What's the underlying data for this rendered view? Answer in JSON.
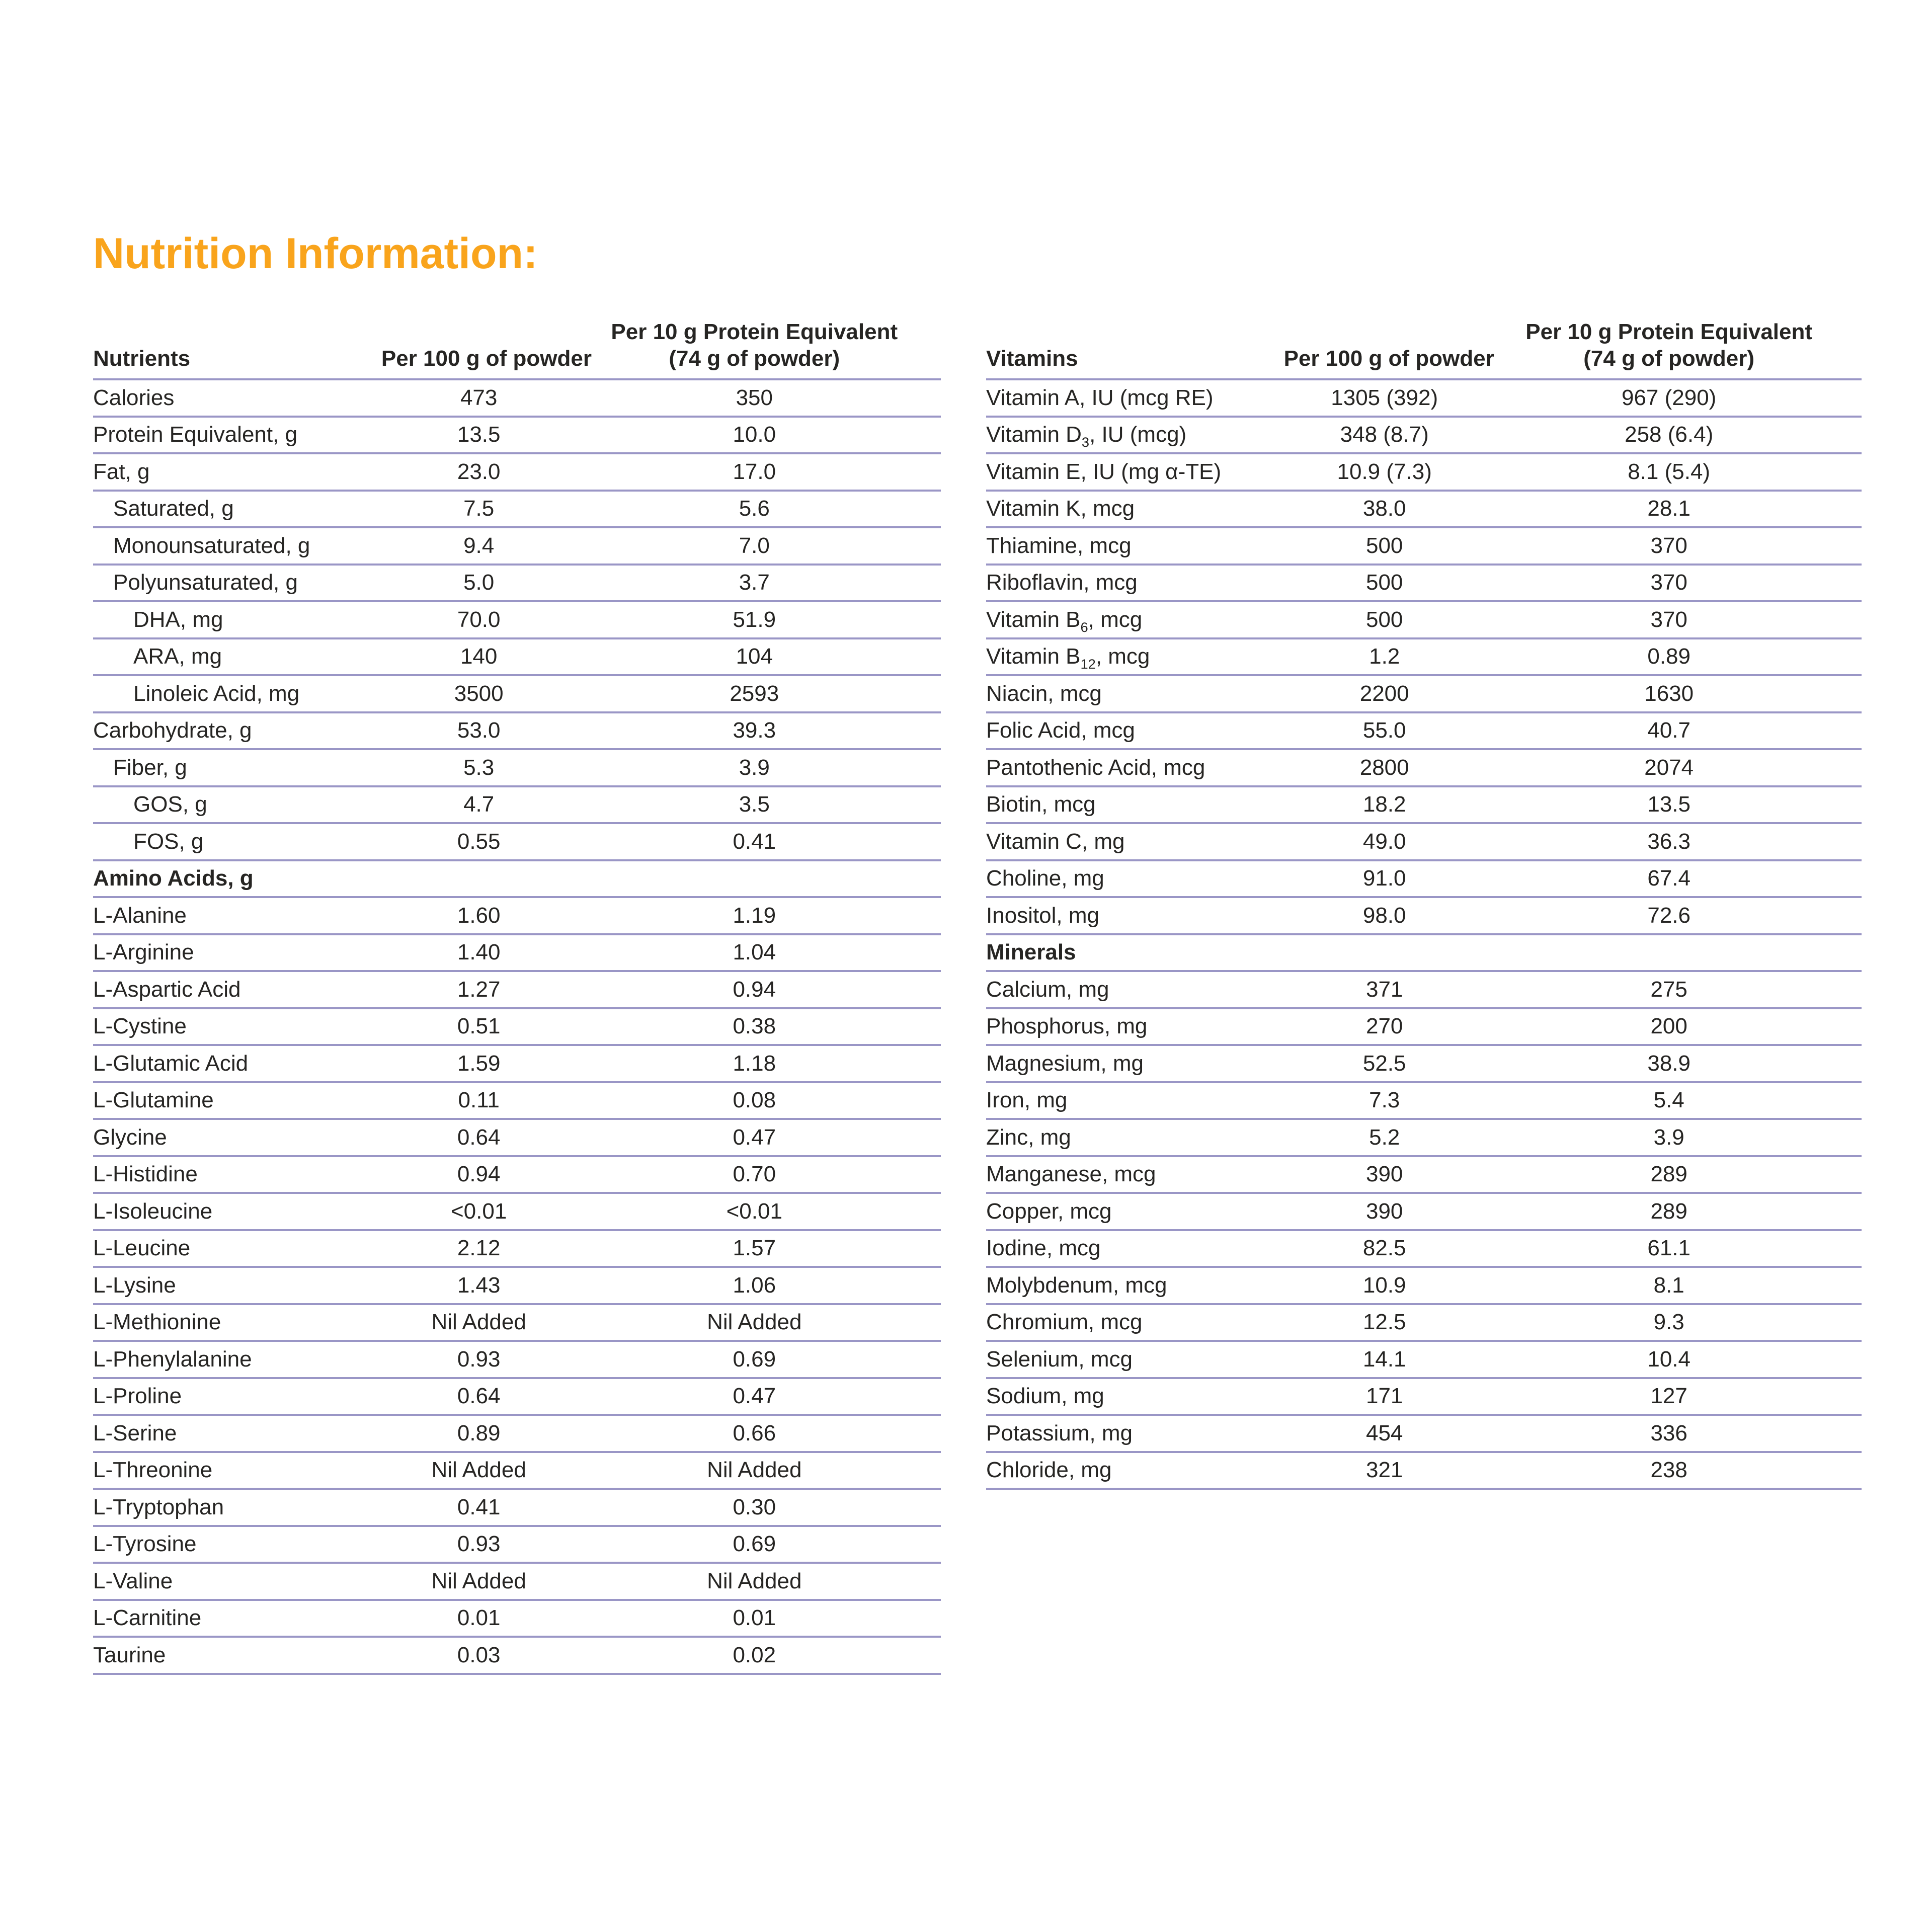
{
  "title": "Nutrition Information:",
  "colors": {
    "accent": "#F9A41C",
    "rule": "#9A96C6",
    "text": "#262523"
  },
  "tables": {
    "left": {
      "col1_header": "Nutrients",
      "col2_header": "Per 100 g of powder",
      "col3_header_line1": "Per 10 g Protein Equivalent",
      "col3_header_line2": "(74 g of powder)",
      "rows": [
        {
          "label": [
            "Calories"
          ],
          "indent": 0,
          "v1": "473",
          "v2": "350"
        },
        {
          "label": [
            "Protein Equivalent, g"
          ],
          "indent": 0,
          "v1": "13.5",
          "v2": "10.0"
        },
        {
          "label": [
            "Fat, g"
          ],
          "indent": 0,
          "v1": "23.0",
          "v2": "17.0"
        },
        {
          "label": [
            "Saturated, g"
          ],
          "indent": 1,
          "v1": "7.5",
          "v2": "5.6"
        },
        {
          "label": [
            "Monounsaturated, g"
          ],
          "indent": 1,
          "v1": "9.4",
          "v2": "7.0"
        },
        {
          "label": [
            "Polyunsaturated, g"
          ],
          "indent": 1,
          "v1": "5.0",
          "v2": "3.7"
        },
        {
          "label": [
            "DHA, mg"
          ],
          "indent": 2,
          "v1": "70.0",
          "v2": "51.9"
        },
        {
          "label": [
            "ARA, mg"
          ],
          "indent": 2,
          "v1": "140",
          "v2": "104"
        },
        {
          "label": [
            "Linoleic Acid, mg"
          ],
          "indent": 2,
          "v1": "3500",
          "v2": "2593"
        },
        {
          "label": [
            "Carbohydrate, g"
          ],
          "indent": 0,
          "v1": "53.0",
          "v2": "39.3"
        },
        {
          "label": [
            "Fiber, g"
          ],
          "indent": 1,
          "v1": "5.3",
          "v2": "3.9"
        },
        {
          "label": [
            "GOS, g"
          ],
          "indent": 2,
          "v1": "4.7",
          "v2": "3.5"
        },
        {
          "label": [
            "FOS, g"
          ],
          "indent": 2,
          "v1": "0.55",
          "v2": "0.41"
        },
        {
          "label": [
            "Amino Acids, g"
          ],
          "indent": 0,
          "section": true
        },
        {
          "label": [
            "L-Alanine"
          ],
          "indent": 0,
          "v1": "1.60",
          "v2": "1.19"
        },
        {
          "label": [
            "L-Arginine"
          ],
          "indent": 0,
          "v1": "1.40",
          "v2": "1.04"
        },
        {
          "label": [
            "L-Aspartic Acid"
          ],
          "indent": 0,
          "v1": "1.27",
          "v2": "0.94"
        },
        {
          "label": [
            "L-Cystine"
          ],
          "indent": 0,
          "v1": "0.51",
          "v2": "0.38"
        },
        {
          "label": [
            "L-Glutamic Acid"
          ],
          "indent": 0,
          "v1": "1.59",
          "v2": "1.18"
        },
        {
          "label": [
            "L-Glutamine"
          ],
          "indent": 0,
          "v1": "0.11",
          "v2": "0.08"
        },
        {
          "label": [
            "Glycine"
          ],
          "indent": 0,
          "v1": "0.64",
          "v2": "0.47"
        },
        {
          "label": [
            "L-Histidine"
          ],
          "indent": 0,
          "v1": "0.94",
          "v2": "0.70"
        },
        {
          "label": [
            "L-Isoleucine"
          ],
          "indent": 0,
          "v1": "<0.01",
          "v2": "<0.01"
        },
        {
          "label": [
            "L-Leucine"
          ],
          "indent": 0,
          "v1": "2.12",
          "v2": "1.57"
        },
        {
          "label": [
            "L-Lysine"
          ],
          "indent": 0,
          "v1": "1.43",
          "v2": "1.06"
        },
        {
          "label": [
            "L-Methionine"
          ],
          "indent": 0,
          "v1": "Nil Added",
          "v2": "Nil Added"
        },
        {
          "label": [
            "L-Phenylalanine"
          ],
          "indent": 0,
          "v1": "0.93",
          "v2": "0.69"
        },
        {
          "label": [
            "L-Proline"
          ],
          "indent": 0,
          "v1": "0.64",
          "v2": "0.47"
        },
        {
          "label": [
            "L-Serine"
          ],
          "indent": 0,
          "v1": "0.89",
          "v2": "0.66"
        },
        {
          "label": [
            "L-Threonine"
          ],
          "indent": 0,
          "v1": "Nil Added",
          "v2": "Nil Added"
        },
        {
          "label": [
            "L-Tryptophan"
          ],
          "indent": 0,
          "v1": "0.41",
          "v2": "0.30"
        },
        {
          "label": [
            "L-Tyrosine"
          ],
          "indent": 0,
          "v1": "0.93",
          "v2": "0.69"
        },
        {
          "label": [
            "L-Valine"
          ],
          "indent": 0,
          "v1": "Nil Added",
          "v2": "Nil Added"
        },
        {
          "label": [
            "L-Carnitine"
          ],
          "indent": 0,
          "v1": "0.01",
          "v2": "0.01"
        },
        {
          "label": [
            "Taurine"
          ],
          "indent": 0,
          "v1": "0.03",
          "v2": "0.02"
        }
      ]
    },
    "right": {
      "col1_header": "Vitamins",
      "col2_header": "Per 100 g of powder",
      "col3_header_line1": "Per 10 g Protein Equivalent",
      "col3_header_line2": "(74 g of powder)",
      "rows": [
        {
          "label": [
            "Vitamin A, IU (mcg RE)"
          ],
          "indent": 0,
          "v1": "1305 (392)",
          "v2": "967 (290)"
        },
        {
          "label": [
            "Vitamin D",
            [
              "sub",
              "3"
            ],
            ", IU (mcg)"
          ],
          "indent": 0,
          "v1": "348 (8.7)",
          "v2": "258 (6.4)"
        },
        {
          "label": [
            "Vitamin E, IU (mg α-TE)"
          ],
          "indent": 0,
          "v1": "10.9 (7.3)",
          "v2": "8.1 (5.4)"
        },
        {
          "label": [
            "Vitamin K, mcg"
          ],
          "indent": 0,
          "v1": "38.0",
          "v2": "28.1"
        },
        {
          "label": [
            "Thiamine, mcg"
          ],
          "indent": 0,
          "v1": "500",
          "v2": "370"
        },
        {
          "label": [
            "Riboflavin, mcg"
          ],
          "indent": 0,
          "v1": "500",
          "v2": "370"
        },
        {
          "label": [
            "Vitamin B",
            [
              "sub",
              "6"
            ],
            ", mcg"
          ],
          "indent": 0,
          "v1": "500",
          "v2": "370"
        },
        {
          "label": [
            "Vitamin B",
            [
              "sub",
              "12"
            ],
            ", mcg"
          ],
          "indent": 0,
          "v1": "1.2",
          "v2": "0.89"
        },
        {
          "label": [
            "Niacin, mcg"
          ],
          "indent": 0,
          "v1": "2200",
          "v2": "1630"
        },
        {
          "label": [
            "Folic Acid, mcg"
          ],
          "indent": 0,
          "v1": "55.0",
          "v2": "40.7"
        },
        {
          "label": [
            "Pantothenic Acid, mcg"
          ],
          "indent": 0,
          "v1": "2800",
          "v2": "2074"
        },
        {
          "label": [
            "Biotin, mcg"
          ],
          "indent": 0,
          "v1": "18.2",
          "v2": "13.5"
        },
        {
          "label": [
            "Vitamin C, mg"
          ],
          "indent": 0,
          "v1": "49.0",
          "v2": "36.3"
        },
        {
          "label": [
            "Choline, mg"
          ],
          "indent": 0,
          "v1": "91.0",
          "v2": "67.4"
        },
        {
          "label": [
            "Inositol, mg"
          ],
          "indent": 0,
          "v1": "98.0",
          "v2": "72.6"
        },
        {
          "label": [
            "Minerals"
          ],
          "indent": 0,
          "section": true
        },
        {
          "label": [
            "Calcium, mg"
          ],
          "indent": 0,
          "v1": "371",
          "v2": "275"
        },
        {
          "label": [
            "Phosphorus, mg"
          ],
          "indent": 0,
          "v1": "270",
          "v2": "200"
        },
        {
          "label": [
            "Magnesium, mg"
          ],
          "indent": 0,
          "v1": "52.5",
          "v2": "38.9"
        },
        {
          "label": [
            "Iron, mg"
          ],
          "indent": 0,
          "v1": "7.3",
          "v2": "5.4"
        },
        {
          "label": [
            "Zinc, mg"
          ],
          "indent": 0,
          "v1": "5.2",
          "v2": "3.9"
        },
        {
          "label": [
            "Manganese, mcg"
          ],
          "indent": 0,
          "v1": "390",
          "v2": "289"
        },
        {
          "label": [
            "Copper, mcg"
          ],
          "indent": 0,
          "v1": "390",
          "v2": "289"
        },
        {
          "label": [
            "Iodine, mcg"
          ],
          "indent": 0,
          "v1": "82.5",
          "v2": "61.1"
        },
        {
          "label": [
            "Molybdenum, mcg"
          ],
          "indent": 0,
          "v1": "10.9",
          "v2": "8.1"
        },
        {
          "label": [
            "Chromium, mcg"
          ],
          "indent": 0,
          "v1": "12.5",
          "v2": "9.3"
        },
        {
          "label": [
            "Selenium, mcg"
          ],
          "indent": 0,
          "v1": "14.1",
          "v2": "10.4"
        },
        {
          "label": [
            "Sodium, mg"
          ],
          "indent": 0,
          "v1": "171",
          "v2": "127"
        },
        {
          "label": [
            "Potassium, mg"
          ],
          "indent": 0,
          "v1": "454",
          "v2": "336"
        },
        {
          "label": [
            "Chloride, mg"
          ],
          "indent": 0,
          "v1": "321",
          "v2": "238"
        }
      ]
    }
  }
}
